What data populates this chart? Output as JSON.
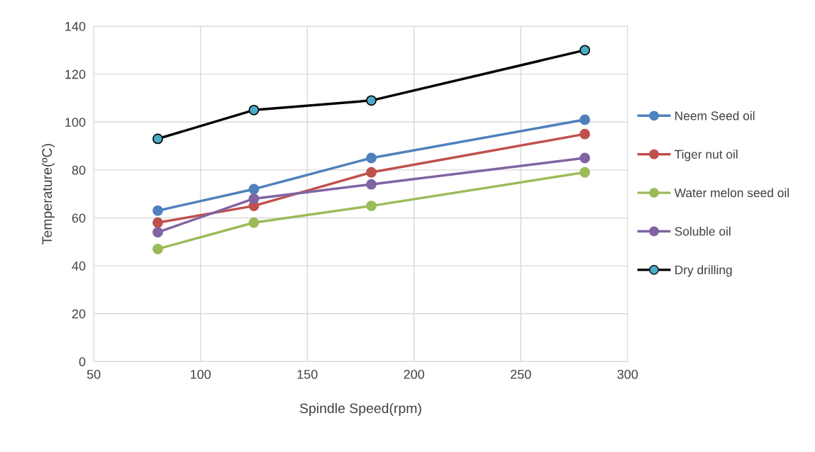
{
  "chart_data": {
    "type": "line",
    "xlabel": "Spindle Speed(rpm)",
    "ylabel": "Temperature(ºC)",
    "x": [
      80,
      125,
      180,
      280
    ],
    "series": [
      {
        "name": "Neem Seed oil",
        "color": "#4f81bd",
        "values": [
          63,
          72,
          85,
          101
        ]
      },
      {
        "name": "Tiger nut oil",
        "color": "#c0504d",
        "values": [
          58,
          65,
          79,
          95
        ]
      },
      {
        "name": "Water melon seed oil",
        "color": "#9bbb59",
        "values": [
          47,
          58,
          65,
          79
        ]
      },
      {
        "name": "Soluble oil",
        "color": "#8064a2",
        "values": [
          54,
          68,
          74,
          85
        ]
      },
      {
        "name": "Dry drilling",
        "color": "#000000",
        "colors": [
          "#4bacc6",
          "#4bacc6",
          "#4bacc6",
          "#4bacc6"
        ],
        "values": [
          93,
          105,
          109,
          130
        ]
      }
    ],
    "xlim": [
      50,
      300
    ],
    "xticks": [
      50,
      100,
      150,
      200,
      250,
      300
    ],
    "ylim": [
      0,
      140
    ],
    "yticks": [
      0,
      20,
      40,
      60,
      80,
      100,
      120,
      140
    ],
    "grid": true,
    "legend": "right",
    "marker": "circle",
    "line_style": "solid"
  }
}
